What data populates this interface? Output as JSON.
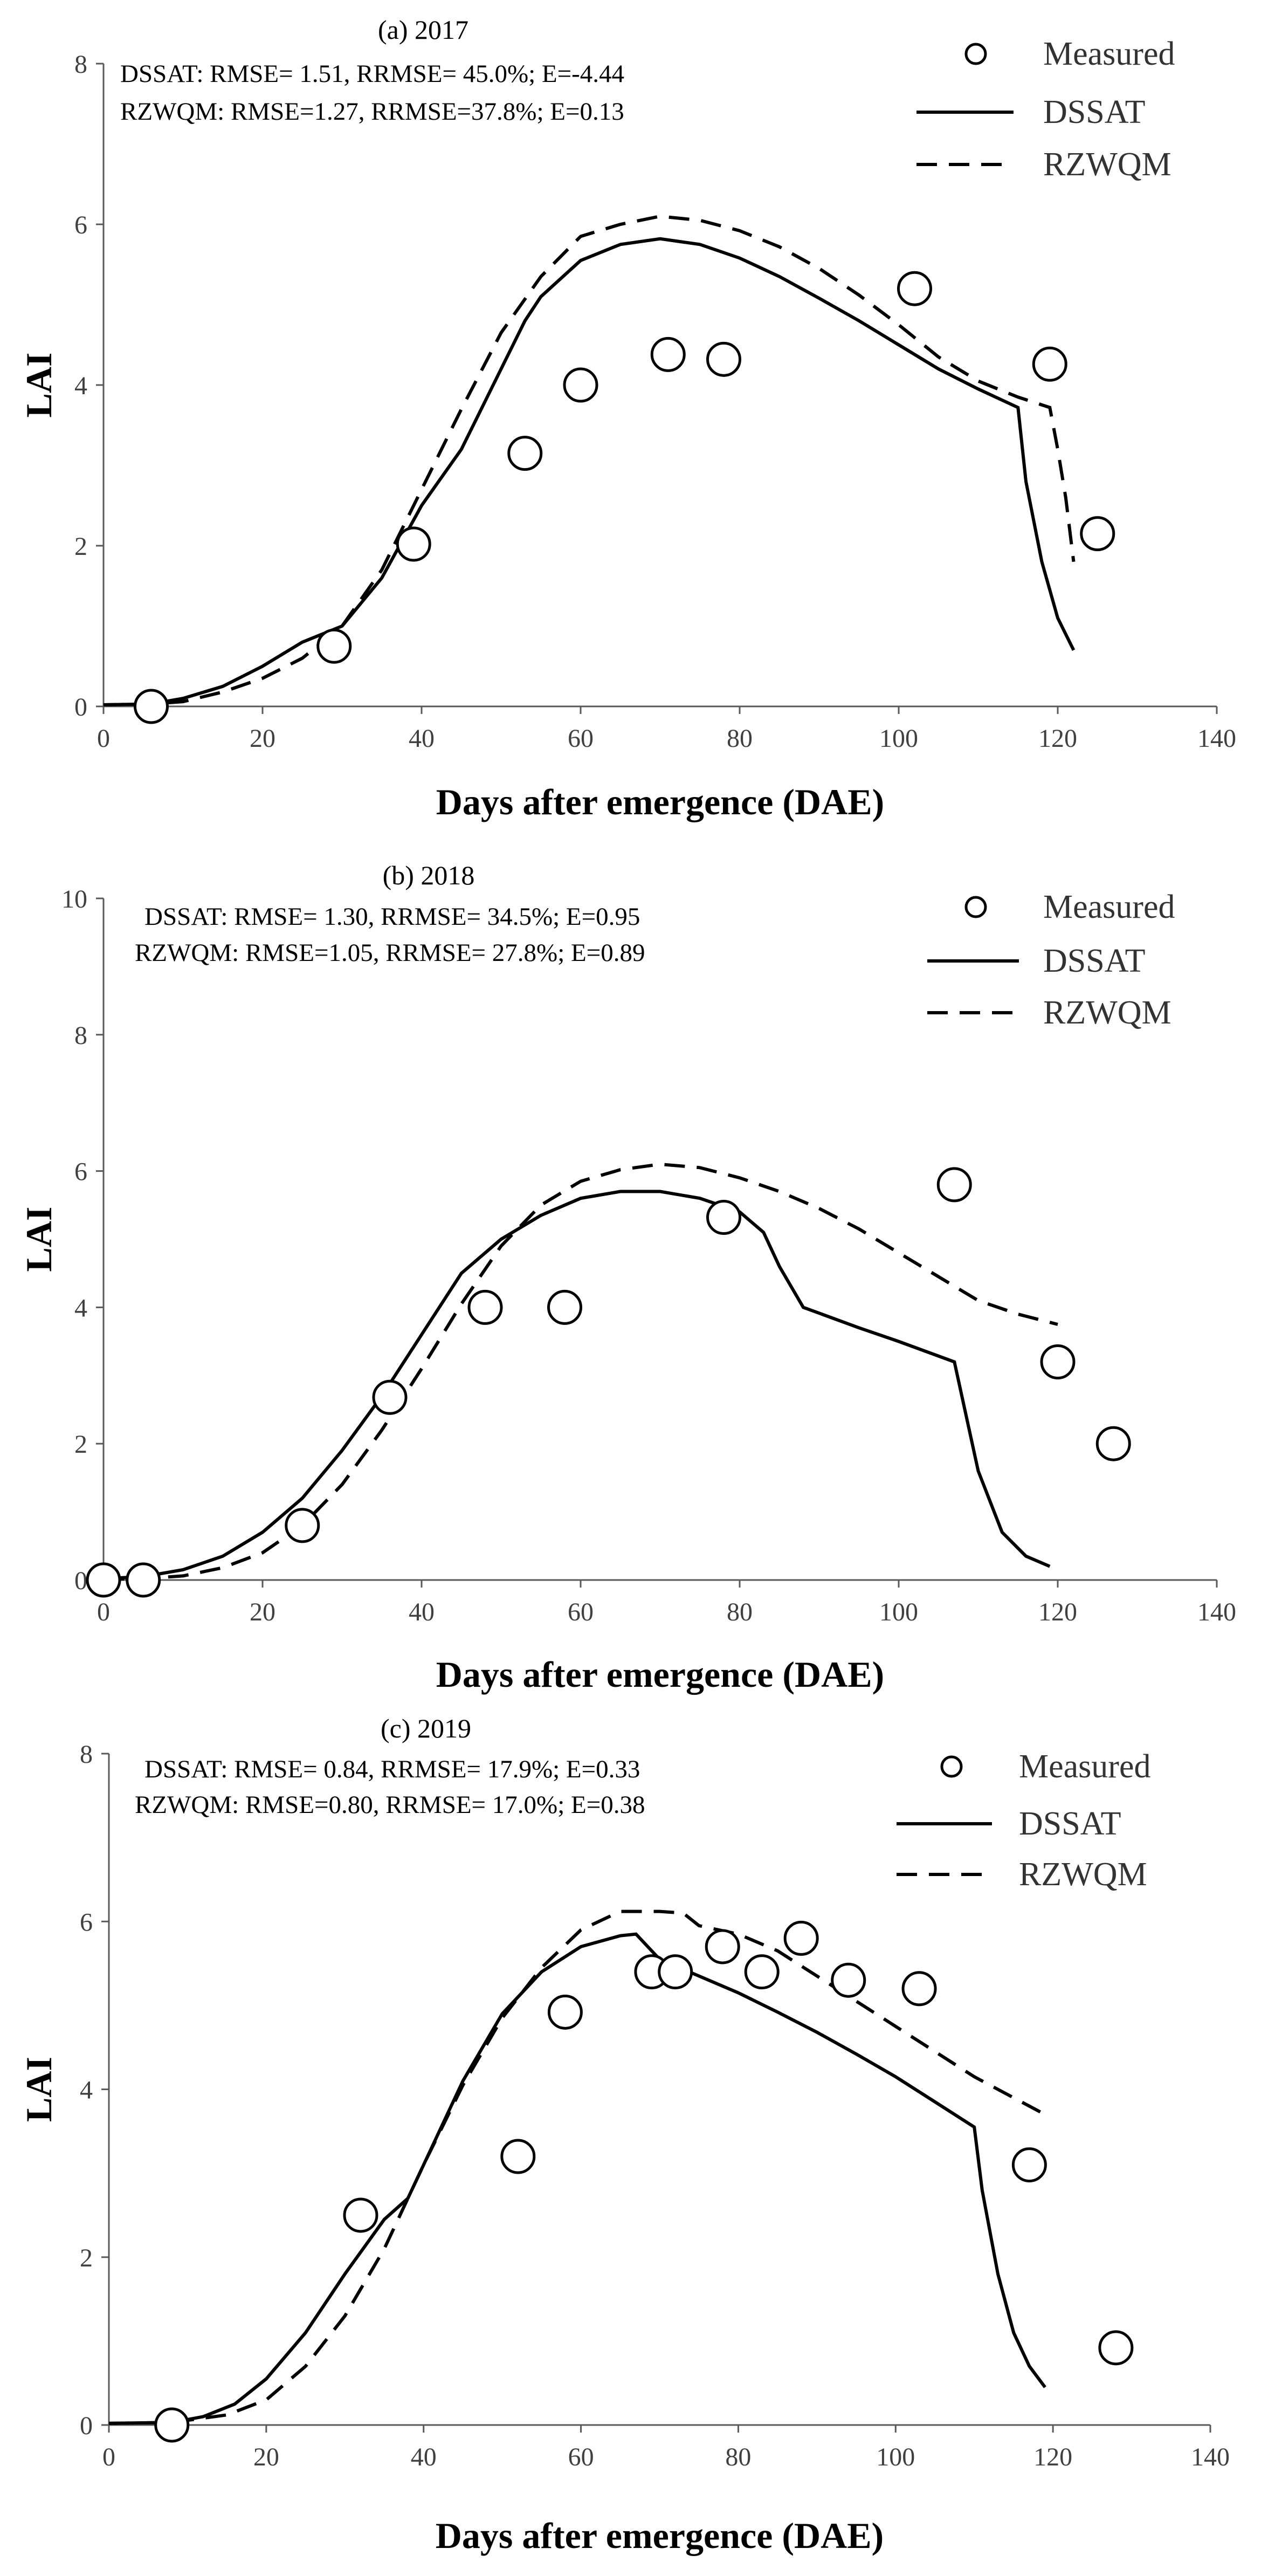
{
  "chart_data": [
    {
      "type": "line",
      "title": "(a) 2017",
      "xlabel": "Days after emergence (DAE)",
      "ylabel": "LAI",
      "xlim": [
        0,
        140
      ],
      "ylim": [
        0,
        8
      ],
      "xticks": [
        0,
        20,
        40,
        60,
        80,
        100,
        120,
        140
      ],
      "yticks": [
        0,
        2,
        4,
        6,
        8
      ],
      "stats": [
        "DSSAT:  RMSE= 1.51, RRMSE= 45.0%; E=-4.44",
        "RZWQM: RMSE=1.27, RRMSE=37.8%; E=0.13"
      ],
      "legend": [
        "Measured",
        "DSSAT",
        "RZWQM"
      ],
      "series": [
        {
          "name": "Measured",
          "kind": "marker",
          "x": [
            6,
            29,
            39,
            53,
            60,
            71,
            78,
            102,
            119,
            125
          ],
          "y": [
            0.0,
            0.75,
            2.02,
            3.15,
            4.0,
            4.38,
            4.32,
            5.2,
            4.26,
            2.15
          ]
        },
        {
          "name": "DSSAT",
          "kind": "solid",
          "x": [
            0,
            6,
            10,
            15,
            20,
            25,
            30,
            35,
            40,
            45,
            50,
            53,
            55,
            60,
            65,
            70,
            75,
            80,
            85,
            90,
            95,
            100,
            105,
            110,
            115,
            116,
            118,
            120,
            122
          ],
          "y": [
            0.02,
            0.03,
            0.1,
            0.25,
            0.5,
            0.8,
            1.0,
            1.6,
            2.5,
            3.2,
            4.2,
            4.8,
            5.1,
            5.55,
            5.75,
            5.82,
            5.75,
            5.58,
            5.35,
            5.08,
            4.8,
            4.5,
            4.2,
            3.95,
            3.72,
            2.8,
            1.8,
            1.1,
            0.7
          ]
        },
        {
          "name": "RZWQM",
          "kind": "dashed",
          "x": [
            0,
            6,
            10,
            15,
            20,
            25,
            30,
            35,
            40,
            45,
            50,
            55,
            60,
            65,
            70,
            75,
            80,
            85,
            90,
            95,
            100,
            105,
            110,
            115,
            119,
            120,
            121,
            122
          ],
          "y": [
            0.02,
            0.03,
            0.06,
            0.18,
            0.35,
            0.6,
            1.0,
            1.7,
            2.7,
            3.7,
            4.65,
            5.35,
            5.85,
            6.0,
            6.1,
            6.05,
            5.92,
            5.72,
            5.45,
            5.12,
            4.75,
            4.35,
            4.05,
            3.85,
            3.72,
            3.2,
            2.6,
            1.8
          ]
        }
      ]
    },
    {
      "type": "line",
      "title": "(b) 2018",
      "xlabel": "Days after emergence (DAE)",
      "ylabel": "LAI",
      "xlim": [
        0,
        140
      ],
      "ylim": [
        0,
        10
      ],
      "xticks": [
        0,
        20,
        40,
        60,
        80,
        100,
        120,
        140
      ],
      "yticks": [
        0,
        2,
        4,
        6,
        8,
        10
      ],
      "stats": [
        "DSSAT:  RMSE= 1.30, RRMSE= 34.5%; E=0.95",
        "RZWQM: RMSE=1.05, RRMSE= 27.8%; E=0.89"
      ],
      "legend": [
        "Measured",
        "DSSAT",
        "RZWQM"
      ],
      "series": [
        {
          "name": "Measured",
          "kind": "marker",
          "x": [
            0,
            5,
            25,
            36,
            48,
            58,
            78,
            107,
            120,
            127
          ],
          "y": [
            0.0,
            0.0,
            0.8,
            2.68,
            4.0,
            4.0,
            5.32,
            5.8,
            3.2,
            2.0
          ]
        },
        {
          "name": "DSSAT",
          "kind": "solid",
          "x": [
            0,
            5,
            10,
            15,
            20,
            25,
            30,
            35,
            40,
            45,
            48,
            50,
            55,
            60,
            65,
            70,
            75,
            80,
            83,
            85,
            88,
            95,
            100,
            107,
            110,
            113,
            116,
            119
          ],
          "y": [
            0.02,
            0.05,
            0.15,
            0.35,
            0.7,
            1.2,
            1.9,
            2.7,
            3.6,
            4.5,
            4.8,
            5.0,
            5.35,
            5.6,
            5.7,
            5.7,
            5.6,
            5.4,
            5.1,
            4.6,
            4.0,
            3.7,
            3.5,
            3.2,
            1.6,
            0.7,
            0.35,
            0.2
          ]
        },
        {
          "name": "RZWQM",
          "kind": "dashed",
          "x": [
            0,
            5,
            10,
            15,
            20,
            25,
            30,
            35,
            40,
            45,
            50,
            55,
            60,
            65,
            70,
            75,
            80,
            85,
            90,
            95,
            100,
            105,
            110,
            115,
            120
          ],
          "y": [
            0.01,
            0.02,
            0.06,
            0.18,
            0.4,
            0.8,
            1.4,
            2.2,
            3.1,
            4.05,
            4.9,
            5.5,
            5.85,
            6.02,
            6.1,
            6.05,
            5.9,
            5.7,
            5.45,
            5.15,
            4.8,
            4.45,
            4.1,
            3.9,
            3.75
          ]
        }
      ]
    },
    {
      "type": "line",
      "title": "(c) 2019",
      "xlabel": "Days after emergence (DAE)",
      "ylabel": "LAI",
      "xlim": [
        0,
        140
      ],
      "ylim": [
        0,
        8
      ],
      "xticks": [
        0,
        20,
        40,
        60,
        80,
        100,
        120,
        140
      ],
      "yticks": [
        0,
        2,
        4,
        6,
        8
      ],
      "stats": [
        "DSSAT:  RMSE= 0.84, RRMSE= 17.9%; E=0.33",
        "RZWQM: RMSE=0.80, RRMSE= 17.0%; E=0.38"
      ],
      "legend": [
        "Measured",
        "DSSAT",
        "RZWQM"
      ],
      "series": [
        {
          "name": "Measured",
          "kind": "marker",
          "x": [
            8,
            32,
            52,
            58,
            69,
            72,
            78,
            83,
            88,
            94,
            103,
            117,
            128
          ],
          "y": [
            0.0,
            2.5,
            3.2,
            4.92,
            5.4,
            5.4,
            5.7,
            5.4,
            5.8,
            5.3,
            5.2,
            3.1,
            0.92
          ]
        },
        {
          "name": "DSSAT",
          "kind": "solid",
          "x": [
            0,
            8,
            12,
            16,
            20,
            25,
            30,
            35,
            38,
            40,
            45,
            50,
            55,
            60,
            65,
            67,
            70,
            75,
            80,
            85,
            90,
            95,
            100,
            105,
            110,
            111,
            113,
            115,
            117,
            119
          ],
          "y": [
            0.02,
            0.03,
            0.1,
            0.25,
            0.55,
            1.1,
            1.8,
            2.45,
            2.7,
            3.1,
            4.1,
            4.9,
            5.4,
            5.7,
            5.83,
            5.85,
            5.55,
            5.35,
            5.15,
            4.92,
            4.68,
            4.42,
            4.15,
            3.85,
            3.55,
            2.8,
            1.8,
            1.1,
            0.7,
            0.45
          ]
        },
        {
          "name": "RZWQM",
          "kind": "dashed",
          "x": [
            0,
            8,
            15,
            20,
            25,
            30,
            35,
            40,
            45,
            50,
            55,
            60,
            65,
            70,
            73,
            75,
            80,
            85,
            90,
            95,
            100,
            105,
            110,
            115,
            119
          ],
          "y": [
            0.02,
            0.03,
            0.12,
            0.3,
            0.7,
            1.3,
            2.1,
            3.1,
            4.05,
            4.85,
            5.45,
            5.9,
            6.12,
            6.12,
            6.1,
            5.95,
            5.85,
            5.65,
            5.35,
            5.05,
            4.75,
            4.45,
            4.15,
            3.9,
            3.7
          ]
        }
      ]
    }
  ]
}
